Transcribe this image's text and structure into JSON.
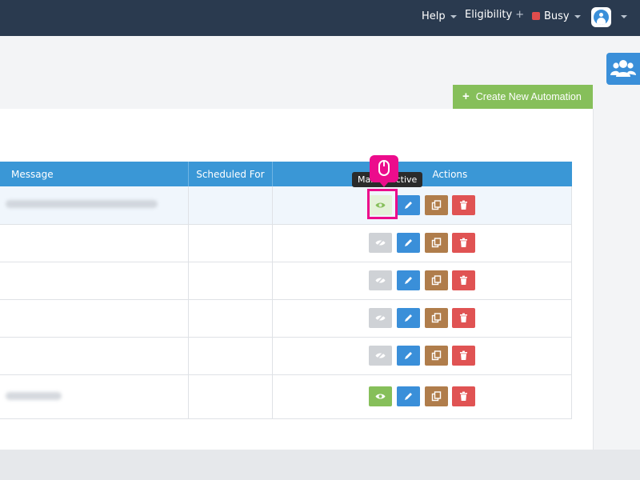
{
  "header": {
    "help_label": "Help",
    "eligibility_label": "Eligibility",
    "status_label": "Busy",
    "icons": [
      "caret-down-icon",
      "plus-icon",
      "user-avatar-icon"
    ]
  },
  "toolbar": {
    "create_label": "Create New Automation",
    "side_icon": "users-group-icon"
  },
  "table": {
    "columns": [
      "Message",
      "Scheduled For",
      "Actions"
    ],
    "rows": [
      {
        "message": "",
        "scheduled": "",
        "view_active": true
      },
      {
        "message": "",
        "scheduled": "",
        "view_active": false
      },
      {
        "message": "",
        "scheduled": "",
        "view_active": false
      },
      {
        "message": "",
        "scheduled": "",
        "view_active": false
      },
      {
        "message": "",
        "scheduled": "",
        "view_active": false
      },
      {
        "message": "",
        "scheduled": "",
        "view_active": true
      }
    ]
  },
  "tooltip": {
    "text": "Mark Inactive"
  },
  "colors": {
    "topbar": "#2a3a4f",
    "header_blue": "#3a97d6",
    "create_green": "#86bf5a",
    "edit_blue": "#3a8fd9",
    "copy_brown": "#b07d4b",
    "delete_red": "#e05353",
    "highlight": "#ec0c8c"
  }
}
